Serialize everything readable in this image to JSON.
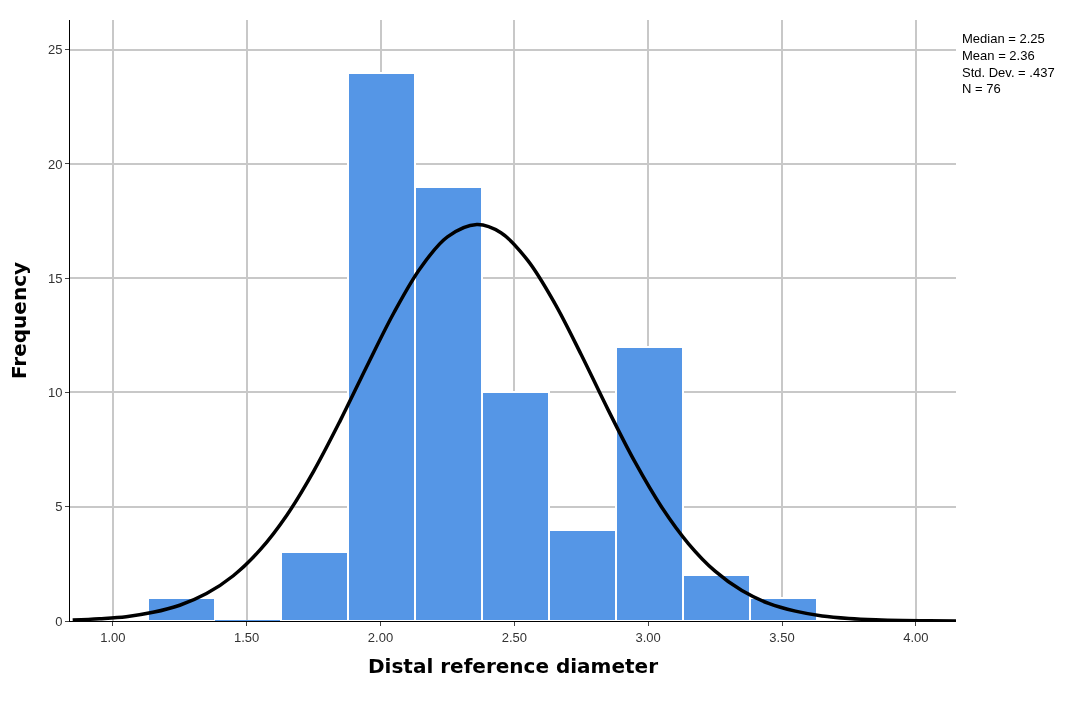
{
  "chart_data": {
    "type": "histogram",
    "xlabel": "Distal reference diameter",
    "ylabel": "Frequency",
    "bins": [
      1.13,
      1.38,
      1.63,
      1.88,
      2.13,
      2.38,
      2.63,
      2.88,
      3.13,
      3.38,
      3.63
    ],
    "values": [
      1,
      0,
      3,
      24,
      19,
      10,
      4,
      12,
      2,
      1
    ],
    "color": "#5596e6",
    "series": [
      {
        "type": "line",
        "color": "#000000",
        "x": [
          0.85,
          0.95,
          1.05,
          1.15,
          1.25,
          1.35,
          1.45,
          1.55,
          1.65,
          1.75,
          1.85,
          1.95,
          2.05,
          2.15,
          2.25,
          2.36,
          2.45,
          2.55,
          2.65,
          2.75,
          2.85,
          2.95,
          3.05,
          3.15,
          3.25,
          3.35,
          3.45,
          3.55,
          3.65,
          3.75,
          3.85,
          3.95,
          4.05,
          4.15
        ],
        "values": [
          0.04,
          0.1,
          0.19,
          0.38,
          0.69,
          1.2,
          1.98,
          3.11,
          4.63,
          6.55,
          8.78,
          11.17,
          13.49,
          15.46,
          16.81,
          17.35,
          16.99,
          15.78,
          13.92,
          11.65,
          9.25,
          6.97,
          4.99,
          3.39,
          2.18,
          1.33,
          0.77,
          0.43,
          0.22,
          0.11,
          0.05,
          0.02,
          0.01,
          0.0
        ]
      }
    ],
    "xlim": [
      0.84,
      4.15
    ],
    "xticks": [
      {
        "value": 1,
        "label": "1.00"
      },
      {
        "value": 1.5,
        "label": "1.50"
      },
      {
        "value": 2,
        "label": "2.00"
      },
      {
        "value": 2.5,
        "label": "2.50"
      },
      {
        "value": 3,
        "label": "3.00"
      },
      {
        "value": 3.5,
        "label": "3.50"
      },
      {
        "value": 4,
        "label": "4.00"
      }
    ],
    "ylim": [
      0,
      26.3
    ],
    "yticks": [
      0,
      5,
      10,
      15,
      20,
      25
    ],
    "grid": true,
    "annotations": [
      "Median = 2.25",
      "Mean = 2.36",
      "Std. Dev. = .437",
      "N = 76"
    ]
  }
}
